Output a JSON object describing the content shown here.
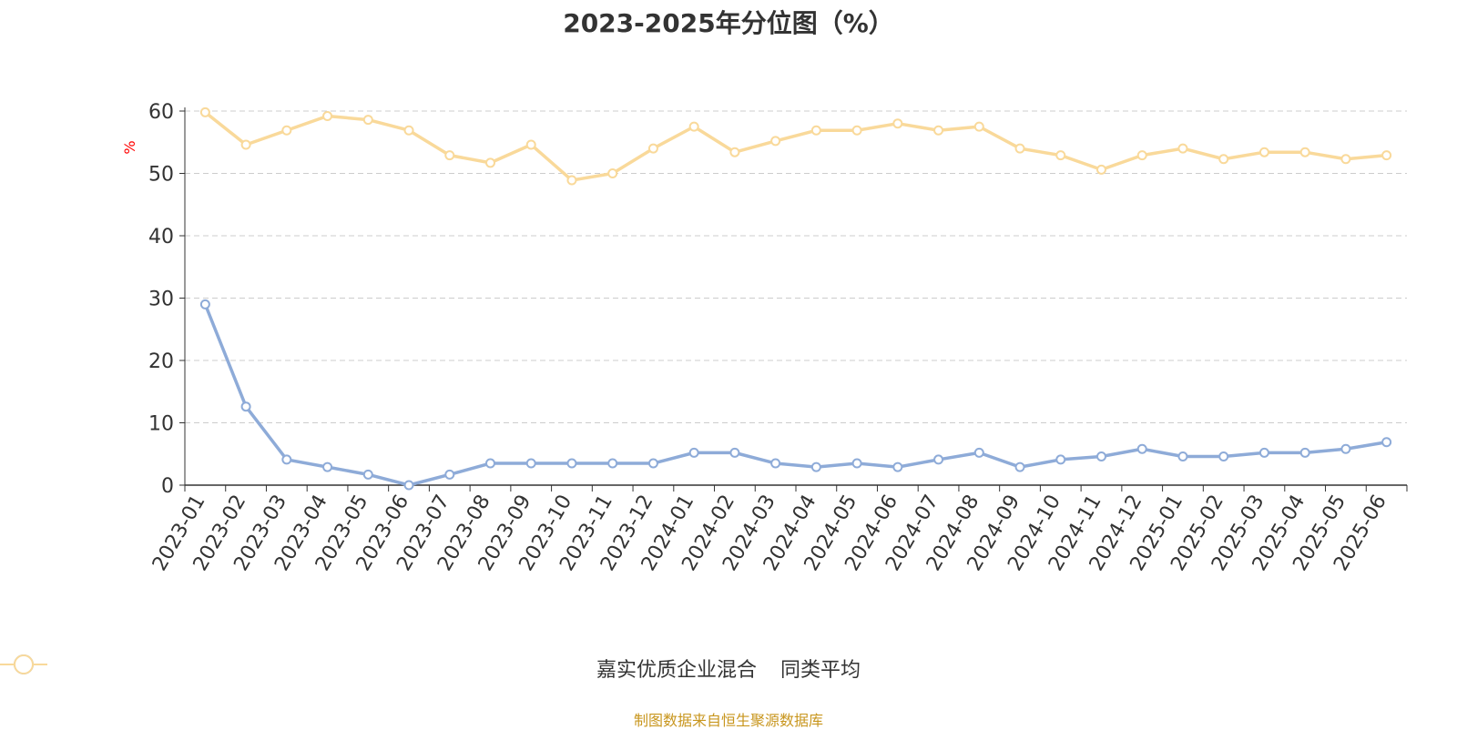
{
  "title": "2023-2025年分位图（%）",
  "source": "制图数据来自恒生聚源数据库",
  "colors": {
    "series_a": "#8eabd8",
    "series_b": "#f9d99a",
    "grid": "#cccccc",
    "axis": "#333333",
    "yunit": "#ff0000"
  },
  "chart_data": {
    "type": "line",
    "title": "2023-2025年分位图（%）",
    "ylabel": "%",
    "ylim": [
      0,
      60
    ],
    "yticks": [
      0,
      10,
      20,
      30,
      40,
      50,
      60
    ],
    "grid": true,
    "legend_position": "bottom",
    "categories": [
      "2023-01",
      "2023-02",
      "2023-03",
      "2023-04",
      "2023-05",
      "2023-06",
      "2023-07",
      "2023-08",
      "2023-09",
      "2023-10",
      "2023-11",
      "2023-12",
      "2024-01",
      "2024-02",
      "2024-03",
      "2024-04",
      "2024-05",
      "2024-06",
      "2024-07",
      "2024-08",
      "2024-09",
      "2024-10",
      "2024-11",
      "2024-12",
      "2025-01",
      "2025-02",
      "2025-03",
      "2025-04",
      "2025-05",
      "2025-06"
    ],
    "series": [
      {
        "name": "嘉实优质企业混合",
        "values": [
          29.0,
          12.6,
          4.1,
          2.9,
          1.7,
          0.0,
          1.7,
          3.5,
          3.5,
          3.5,
          3.5,
          3.5,
          5.2,
          5.2,
          3.5,
          2.9,
          3.5,
          2.9,
          4.1,
          5.2,
          2.9,
          4.1,
          4.6,
          5.8,
          4.6,
          4.6,
          5.2,
          5.2,
          5.8,
          6.9
        ]
      },
      {
        "name": "同类平均",
        "values": [
          59.8,
          54.6,
          56.9,
          59.2,
          58.6,
          56.9,
          52.9,
          51.7,
          54.6,
          48.9,
          50.0,
          54.0,
          57.5,
          53.4,
          55.2,
          56.9,
          56.9,
          58.0,
          56.9,
          57.5,
          54.0,
          52.9,
          50.6,
          52.9,
          54.0,
          52.3,
          53.4,
          53.4,
          52.3,
          52.9
        ]
      }
    ]
  }
}
